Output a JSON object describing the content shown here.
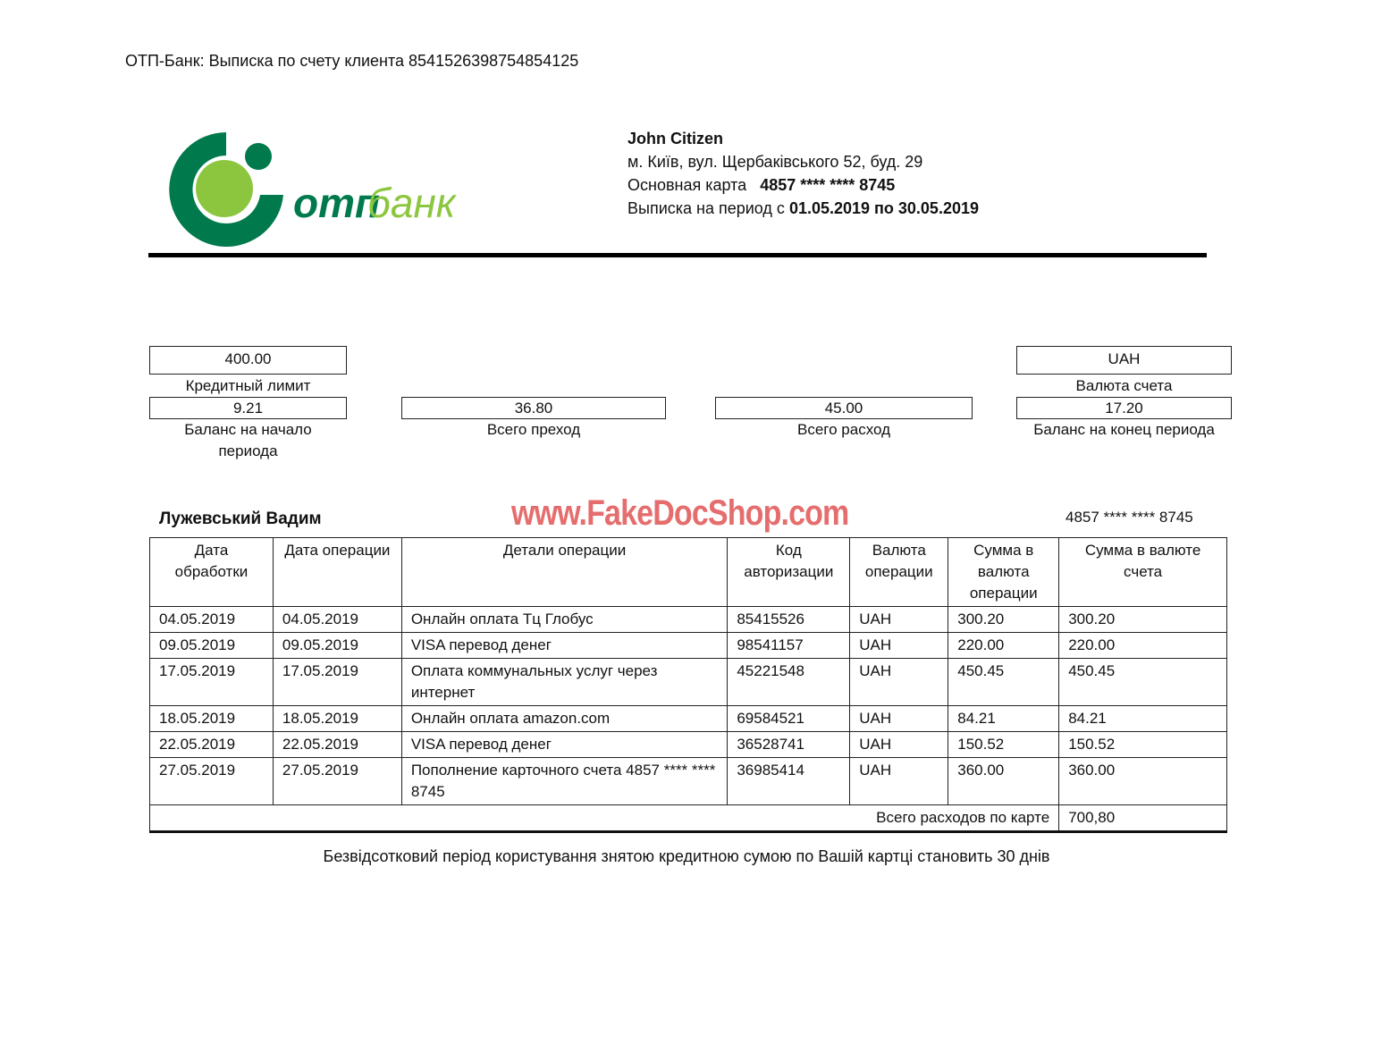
{
  "doc_title": "ОТП-Банк:  Выписка по счету клиента 8541526398754854125",
  "logo": {
    "text_bold": "отп",
    "text_light": "банк",
    "colors": {
      "dark_green": "#007a4d",
      "light_green": "#8cc63f"
    }
  },
  "client": {
    "name": "John Citizen",
    "address": "м. Київ, вул.  Щербаківського 52, буд. 29",
    "card_label": "Основная карта",
    "card_number": "4857 **** **** 8745",
    "period_label": "Выписка на период с",
    "period_value": "01.05.2019 по 30.05.2019"
  },
  "summary": {
    "credit_limit": {
      "value": "400.00",
      "label": "Кредитный лимит"
    },
    "currency": {
      "value": "UAH",
      "label": "Валюта счета"
    },
    "opening_balance": {
      "value": "9.21",
      "label1": "Баланс на начало",
      "label2": "периода"
    },
    "total_in": {
      "value": "36.80",
      "label": "Всего преход"
    },
    "total_out": {
      "value": "45.00",
      "label": "Всего расход"
    },
    "closing_balance": {
      "value": "17.20",
      "label": "Баланс на конец периода"
    }
  },
  "holder": {
    "name": "Лужевський Вадим",
    "card": "4857 **** **** 8745"
  },
  "watermark": "www.FakeDocShop.com",
  "table": {
    "headers": [
      "Дата обработки",
      "Дата операции",
      "Детали операции",
      "Код авторизации",
      "Валюта операции",
      "Сумма в валюта операции",
      "Сумма в валюте счета"
    ],
    "rows": [
      [
        "04.05.2019",
        "04.05.2019",
        "Онлайн оплата  Тц Глобус",
        "85415526",
        "UAH",
        "300.20",
        "300.20"
      ],
      [
        "09.05.2019",
        "09.05.2019",
        "VISA перевод денег",
        "98541157",
        "UAH",
        "220.00",
        "220.00"
      ],
      [
        "17.05.2019",
        "17.05.2019",
        "Оплата коммунальных услуг через интернет",
        "45221548",
        "UAH",
        "450.45",
        "450.45"
      ],
      [
        "18.05.2019",
        "18.05.2019",
        "Онлайн оплата amazon.com",
        "69584521",
        "UAH",
        "84.21",
        "84.21"
      ],
      [
        "22.05.2019",
        "22.05.2019",
        "VISA перевод денег",
        "36528741",
        "UAH",
        "150.52",
        "150.52"
      ],
      [
        "27.05.2019",
        "27.05.2019",
        "Пополнение карточного счета 4857 **** **** 8745",
        "36985414",
        "UAH",
        "360.00",
        "360.00"
      ]
    ],
    "total_label": "Всего расходов по карте",
    "total_value": "700,80"
  },
  "footer_note": "Безвідсотковий період користування знятою кредитною сумою по Вашій картці становить 30 днів"
}
